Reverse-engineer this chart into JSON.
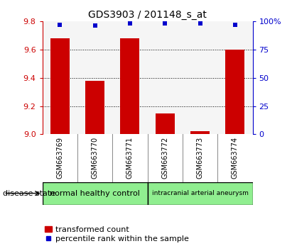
{
  "title": "GDS3903 / 201148_s_at",
  "samples": [
    "GSM663769",
    "GSM663770",
    "GSM663771",
    "GSM663772",
    "GSM663773",
    "GSM663774"
  ],
  "transformed_count": [
    9.68,
    9.38,
    9.68,
    9.15,
    9.02,
    9.6
  ],
  "percentile_rank": [
    97,
    96,
    98,
    98,
    98,
    97
  ],
  "ylim_left": [
    9.0,
    9.8
  ],
  "ylim_right": [
    0,
    100
  ],
  "yticks_left": [
    9.0,
    9.2,
    9.4,
    9.6,
    9.8
  ],
  "yticks_right": [
    0,
    25,
    50,
    75,
    100
  ],
  "bar_color": "#cc0000",
  "scatter_color": "#0000cc",
  "group1_label": "normal healthy control",
  "group2_label": "intracranial arterial aneurysm",
  "group1_count": 3,
  "group2_count": 3,
  "group_color": "#90ee90",
  "label_bar": "transformed count",
  "label_scatter": "percentile rank within the sample",
  "disease_state_label": "disease state",
  "left_axis_color": "#cc0000",
  "right_axis_color": "#0000cc",
  "grid_color": "#000000",
  "background_color": "#ffffff",
  "plot_bg_color": "#f5f5f5",
  "sample_box_color": "#d3d3d3",
  "title_fontsize": 10,
  "tick_fontsize": 8,
  "sample_fontsize": 7,
  "legend_fontsize": 8,
  "group_fontsize": 8,
  "bar_width": 0.55
}
